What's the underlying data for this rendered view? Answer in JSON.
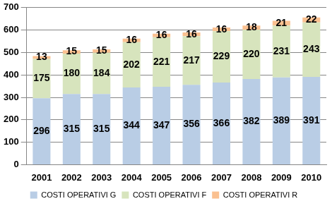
{
  "chart_data": {
    "type": "bar",
    "categories": [
      "2001",
      "2002",
      "2003",
      "2004",
      "2005",
      "2006",
      "2007",
      "2008",
      "2009",
      "2010"
    ],
    "series": [
      {
        "name": "COSTI OPERATIVI G",
        "color": "#b9cde5",
        "values": [
          296,
          315,
          315,
          344,
          347,
          356,
          366,
          382,
          389,
          391
        ]
      },
      {
        "name": "COSTI OPERATIVI F",
        "color": "#d7e4bd",
        "values": [
          175,
          180,
          184,
          202,
          221,
          217,
          229,
          220,
          231,
          243
        ]
      },
      {
        "name": "COSTI OPERATIVI R",
        "color": "#fac090",
        "values": [
          13,
          15,
          15,
          16,
          16,
          16,
          16,
          18,
          21,
          22
        ]
      }
    ],
    "ylim": [
      0,
      700
    ],
    "yticks": [
      0,
      100,
      200,
      300,
      400,
      500,
      600,
      700
    ],
    "grid": true,
    "stacked": true,
    "data_labels": true,
    "legend": "bottom"
  }
}
